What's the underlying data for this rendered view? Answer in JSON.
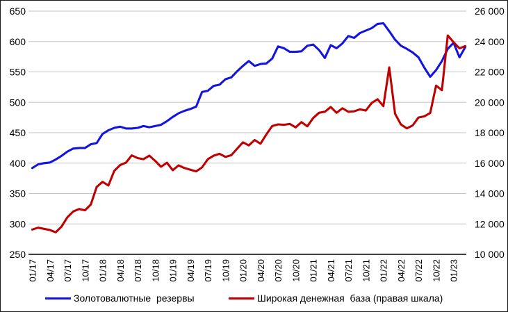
{
  "chart": {
    "background": "#ffffff",
    "grid_color": "#c3c3c3",
    "axis_color": "#000000",
    "legend": [
      {
        "label": "Золотовалютные  резервы",
        "color": "#1414e0"
      },
      {
        "label": "Широкая денежная  база (правая шкала)",
        "color": "#c00000"
      }
    ]
  },
  "chart_data": {
    "type": "line",
    "title": "",
    "xlabel": "",
    "ylabel_left": "",
    "ylabel_right": "",
    "grid": true,
    "legend_position": "bottom",
    "x": [
      "01/17",
      "02/17",
      "03/17",
      "04/17",
      "05/17",
      "06/17",
      "07/17",
      "08/17",
      "09/17",
      "10/17",
      "11/17",
      "12/17",
      "01/18",
      "02/18",
      "03/18",
      "04/18",
      "05/18",
      "06/18",
      "07/18",
      "08/18",
      "09/18",
      "10/18",
      "11/18",
      "12/18",
      "01/19",
      "02/19",
      "03/19",
      "04/19",
      "05/19",
      "06/19",
      "07/19",
      "08/19",
      "09/19",
      "10/19",
      "11/19",
      "12/19",
      "01/20",
      "02/20",
      "03/20",
      "04/20",
      "05/20",
      "06/20",
      "07/20",
      "08/20",
      "09/20",
      "10/20",
      "11/20",
      "12/20",
      "01/21",
      "02/21",
      "03/21",
      "04/21",
      "05/21",
      "06/21",
      "07/21",
      "08/21",
      "09/21",
      "10/21",
      "11/21",
      "12/21",
      "01/22",
      "02/22",
      "03/22",
      "04/22",
      "05/22",
      "06/22",
      "07/22",
      "08/22",
      "09/22",
      "10/22",
      "11/22",
      "12/22",
      "01/23",
      "02/23",
      "03/23"
    ],
    "x_tick_labels": [
      "01/17",
      "04/17",
      "07/17",
      "10/17",
      "01/18",
      "04/18",
      "07/18",
      "10/18",
      "01/19",
      "04/19",
      "07/19",
      "10/19",
      "01/20",
      "04/20",
      "07/20",
      "10/20",
      "01/21",
      "04/21",
      "07/21",
      "10/21",
      "01/22",
      "04/22",
      "07/22",
      "10/22",
      "01/23"
    ],
    "left_axis": {
      "min": 250,
      "max": 650,
      "step": 50,
      "tick_labels": [
        "650",
        "600",
        "550",
        "500",
        "450",
        "400",
        "350",
        "300",
        "250"
      ]
    },
    "right_axis": {
      "min": 10000,
      "max": 26000,
      "step": 2000,
      "tick_labels": [
        "26 000",
        "24 000",
        "22 000",
        "20 000",
        "18 000",
        "16 000",
        "14 000",
        "12 000",
        "10 000"
      ]
    },
    "series": [
      {
        "name": "Золотовалютные  резервы",
        "axis": "left",
        "color": "#1414e0",
        "values": [
          392,
          398,
          400,
          401,
          406,
          412,
          419,
          424,
          425,
          425,
          431,
          433,
          448,
          454,
          458,
          460,
          457,
          457,
          458,
          461,
          459,
          461,
          463,
          469,
          476,
          482,
          486,
          489,
          493,
          517,
          519,
          527,
          529,
          538,
          541,
          551,
          560,
          568,
          560,
          563,
          564,
          572,
          592,
          589,
          583,
          583,
          584,
          593,
          595,
          586,
          573,
          594,
          589,
          597,
          609,
          606,
          614,
          618,
          622,
          629,
          630,
          617,
          603,
          593,
          588,
          582,
          574,
          557,
          542,
          553,
          568,
          588,
          598,
          574,
          591
        ]
      },
      {
        "name": "Широкая денежная  база (правая шкала)",
        "axis": "right",
        "color": "#c00000",
        "values": [
          11630,
          11750,
          11680,
          11600,
          11450,
          11830,
          12440,
          12820,
          12980,
          12900,
          13280,
          14430,
          14770,
          14530,
          15490,
          15870,
          16030,
          16510,
          16330,
          16260,
          16490,
          16150,
          15760,
          16030,
          15530,
          15850,
          15680,
          15570,
          15460,
          15720,
          16260,
          16490,
          16610,
          16410,
          16520,
          16950,
          17370,
          17170,
          17520,
          17280,
          17890,
          18440,
          18550,
          18520,
          18580,
          18350,
          18700,
          18420,
          18970,
          19310,
          19380,
          19690,
          19310,
          19610,
          19380,
          19410,
          19540,
          19460,
          19960,
          20200,
          19750,
          22300,
          19250,
          18540,
          18290,
          18480,
          19000,
          19080,
          19300,
          21100,
          20800,
          24400,
          23950,
          23550,
          23700
        ]
      }
    ]
  }
}
